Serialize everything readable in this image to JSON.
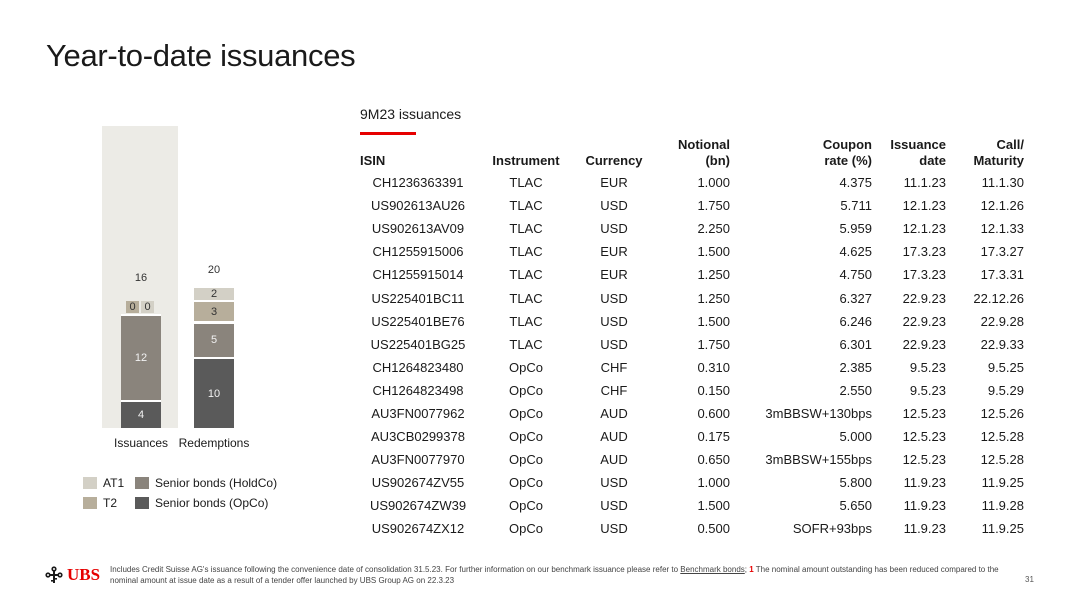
{
  "title": "Year-to-date issuances",
  "table_title": "9M23 issuances",
  "colors": {
    "at1": "#d3d0c6",
    "t2": "#b7ae9b",
    "holdco": "#8a847c",
    "opco": "#5a5a5a",
    "accent": "#e60000",
    "highlight": "#ecebe6"
  },
  "chart_data": {
    "type": "bar",
    "stacked": true,
    "categories": [
      "Issuances",
      "Redemptions"
    ],
    "totals": [
      16,
      20
    ],
    "series": [
      {
        "name": "Senior bonds (OpCo)",
        "values": [
          4,
          10
        ]
      },
      {
        "name": "Senior bonds (HoldCo)",
        "values": [
          12,
          5
        ]
      },
      {
        "name": "T2",
        "values": [
          0,
          3
        ]
      },
      {
        "name": "AT1",
        "values": [
          0,
          2
        ]
      }
    ],
    "legend": [
      "AT1",
      "Senior bonds (HoldCo)",
      "T2",
      "Senior bonds (OpCo)"
    ]
  },
  "table": {
    "headers": {
      "isin": "ISIN",
      "instrument": "Instrument",
      "currency": "Currency",
      "notional_1": "Notional",
      "notional_2": "(bn)",
      "coupon_1": "Coupon",
      "coupon_2": "rate (%)",
      "issuance_1": "Issuance",
      "issuance_2": "date",
      "maturity_1": "Call/",
      "maturity_2": "Maturity"
    },
    "rows": [
      [
        "CH1236363391",
        "TLAC",
        "EUR",
        "1.000",
        "4.375",
        "11.1.23",
        "11.1.30"
      ],
      [
        "US902613AU26",
        "TLAC",
        "USD",
        "1.750",
        "5.711",
        "12.1.23",
        "12.1.26"
      ],
      [
        "US902613AV09",
        "TLAC",
        "USD",
        "2.250",
        "5.959",
        "12.1.23",
        "12.1.33"
      ],
      [
        "CH1255915006",
        "TLAC",
        "EUR",
        "1.500",
        "4.625",
        "17.3.23",
        "17.3.27"
      ],
      [
        "CH1255915014",
        "TLAC",
        "EUR",
        "1.250",
        "4.750",
        "17.3.23",
        "17.3.31"
      ],
      [
        "US225401BC11",
        "TLAC",
        "USD",
        "1.250",
        "6.327",
        "22.9.23",
        "22.12.26"
      ],
      [
        "US225401BE76",
        "TLAC",
        "USD",
        "1.500",
        "6.246",
        "22.9.23",
        "22.9.28"
      ],
      [
        "US225401BG25",
        "TLAC",
        "USD",
        "1.750",
        "6.301",
        "22.9.23",
        "22.9.33"
      ],
      [
        "CH1264823480",
        "OpCo",
        "CHF",
        "0.310",
        "2.385",
        "9.5.23",
        "9.5.25"
      ],
      [
        "CH1264823498",
        "OpCo",
        "CHF",
        "0.150",
        "2.550",
        "9.5.23",
        "9.5.29"
      ],
      [
        "AU3FN0077962",
        "OpCo",
        "AUD",
        "0.600",
        "3mBBSW+130bps",
        "12.5.23",
        "12.5.26"
      ],
      [
        "AU3CB0299378",
        "OpCo",
        "AUD",
        "0.175",
        "5.000",
        "12.5.23",
        "12.5.28"
      ],
      [
        "AU3FN0077970",
        "OpCo",
        "AUD",
        "0.650",
        "3mBBSW+155bps",
        "12.5.23",
        "12.5.28"
      ],
      [
        "US902674ZV55",
        "OpCo",
        "USD",
        "1.000",
        "5.800",
        "11.9.23",
        "11.9.25"
      ],
      [
        "US902674ZW39",
        "OpCo",
        "USD",
        "1.500",
        "5.650",
        "11.9.23",
        "11.9.28"
      ],
      [
        "US902674ZX12",
        "OpCo",
        "USD",
        "0.500",
        "SOFR+93bps",
        "11.9.23",
        "11.9.25"
      ]
    ]
  },
  "footer": {
    "logo": "UBS",
    "text_1": "Includes Credit Suisse AG's issuance following the convenience date of consolidation 31.5.23. For further information on our benchmark issuance please refer to ",
    "link": "Benchmark bonds",
    "text_2": "; ",
    "note_num": "1",
    "text_3": " The nominal amount outstanding has been reduced compared to the nominal amount at issue date as a result of a tender offer launched by UBS Group AG on 22.3.23",
    "page": "31"
  }
}
